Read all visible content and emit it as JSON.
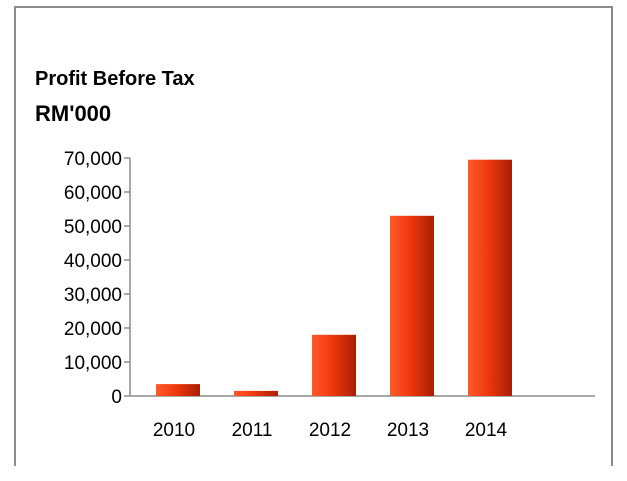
{
  "chart_data": {
    "type": "bar",
    "title": "Profit Before Tax",
    "subtitle": "RM'000",
    "categories": [
      "2010",
      "2011",
      "2012",
      "2013",
      "2014"
    ],
    "values": [
      3500,
      1500,
      18000,
      53000,
      69500
    ],
    "y_ticks": [
      "0",
      "10,000",
      "20,000",
      "30,000",
      "40,000",
      "50,000",
      "60,000",
      "70,000"
    ],
    "ylim": [
      0,
      70000
    ],
    "xlabel": "",
    "ylabel": "",
    "grid": false,
    "legend": "none",
    "colors": {
      "bar_light": "#ff5a2a",
      "bar_mid": "#f0380e",
      "bar_dark": "#a81f04",
      "axis": "#8c8c8c"
    }
  }
}
